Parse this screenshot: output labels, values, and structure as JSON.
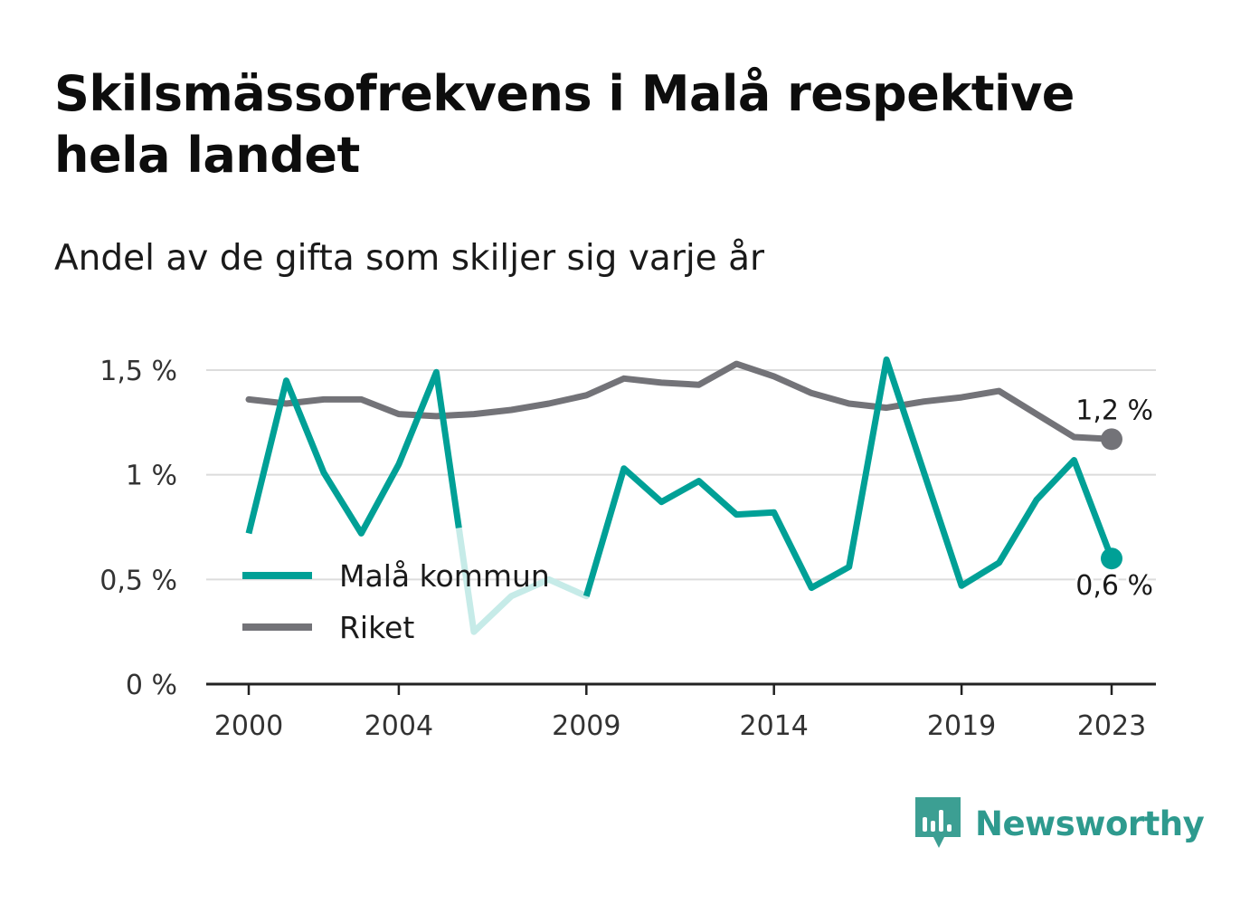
{
  "title": "Skilsmässofrekvens i Malå respektive hela landet",
  "subtitle": "Andel av de gifta som skiljer sig varje år",
  "brand": "Newsworthy",
  "chart_data": {
    "type": "line",
    "title": "Skilsmässofrekvens i Malå respektive hela landet",
    "subtitle": "Andel av de gifta som skiljer sig varje år",
    "xlabel": "",
    "ylabel": "",
    "x": [
      2000,
      2001,
      2002,
      2003,
      2004,
      2005,
      2006,
      2007,
      2008,
      2009,
      2010,
      2011,
      2012,
      2013,
      2014,
      2015,
      2016,
      2017,
      2018,
      2019,
      2020,
      2021,
      2022,
      2023
    ],
    "xticks": [
      2000,
      2004,
      2009,
      2014,
      2019,
      2023
    ],
    "xtick_labels": [
      "2000",
      "2004",
      "2009",
      "2014",
      "2019",
      "2023"
    ],
    "yticks": [
      0,
      0.5,
      1,
      1.5
    ],
    "ytick_labels": [
      "0 %",
      "0,5 %",
      "1 %",
      "1,5 %"
    ],
    "ylim": [
      0,
      1.6
    ],
    "grid": true,
    "legend_position": "bottom-left",
    "series": [
      {
        "name": "Malå kommun",
        "color": "#00a096",
        "faded_color": "#c6ebe8",
        "faded_x_range": [
          2005.6,
          2009
        ],
        "values": [
          0.72,
          1.45,
          1.01,
          0.72,
          1.05,
          1.49,
          0.25,
          0.42,
          0.5,
          0.42,
          1.03,
          0.87,
          0.97,
          0.81,
          0.82,
          0.46,
          0.56,
          1.55,
          1.01,
          0.47,
          0.58,
          0.88,
          1.07,
          0.6
        ],
        "end_label": "0,6 %"
      },
      {
        "name": "Riket",
        "color": "#737378",
        "values": [
          1.36,
          1.34,
          1.36,
          1.36,
          1.29,
          1.28,
          1.29,
          1.31,
          1.34,
          1.38,
          1.46,
          1.44,
          1.43,
          1.53,
          1.47,
          1.39,
          1.34,
          1.32,
          1.35,
          1.37,
          1.4,
          1.29,
          1.18,
          1.17
        ],
        "end_label": "1,2 %"
      }
    ]
  }
}
